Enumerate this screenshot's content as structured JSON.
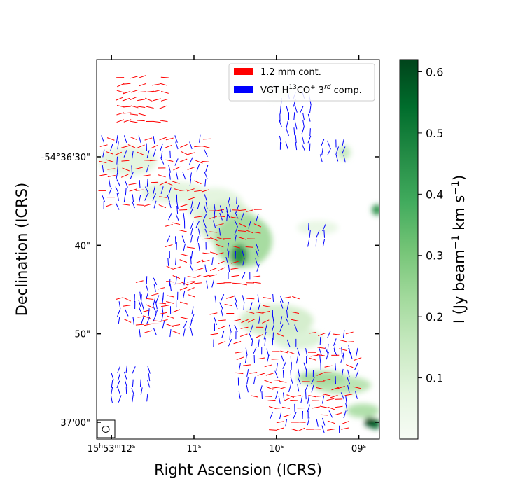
{
  "chart_data": {
    "type": "map",
    "xlabel": "Right Ascension (ICRS)",
    "ylabel": "Declination (ICRS)",
    "x_ticks": [
      {
        "sec": 12,
        "label_h": "15",
        "label_m": "53",
        "label_s": "12",
        "sup_h": "h",
        "sup_m": "m",
        "sup_s": "s"
      },
      {
        "sec": 11,
        "label_s": "11",
        "sup_s": "s"
      },
      {
        "sec": 10,
        "label_s": "10",
        "sup_s": "s"
      },
      {
        "sec": 9,
        "label_s": "09",
        "sup_s": "s"
      }
    ],
    "y_ticks": [
      {
        "arcsec": 30,
        "label": "-54°36'30\""
      },
      {
        "arcsec": 40,
        "label": "40\""
      },
      {
        "arcsec": 50,
        "label": "50\""
      },
      {
        "arcsec": 60,
        "label": "37'00\""
      }
    ],
    "ra_range_sec": [
      12.18,
      8.75
    ],
    "dec_range_arcsec": [
      19.0,
      61.9
    ],
    "colorbar": {
      "cmap": "Greens",
      "label_pre": "I (Jy beam",
      "label_sup1": "−1",
      "label_mid": " km s",
      "label_sup2": "−1",
      "label_post": ")",
      "vmin": 0.0,
      "vmax": 0.62,
      "ticks": [
        0.1,
        0.2,
        0.3,
        0.4,
        0.5,
        0.6
      ],
      "tick_labels": [
        "0.1",
        "0.2",
        "0.3",
        "0.4",
        "0.5",
        "0.6"
      ]
    },
    "legend": {
      "position": "top-right",
      "entries": [
        {
          "label": "1.2 mm cont.",
          "color": "#ff0000"
        },
        {
          "label_pre": "VGT H",
          "label_sup": "13",
          "label_mid": "CO",
          "label_sup2": "+",
          "label_post": " 3",
          "label_sup3": "rd",
          "label_end": " comp.",
          "color": "#0000ff"
        }
      ]
    },
    "intensity_blobs": [
      {
        "ra": 10.45,
        "dec": 41.1,
        "rx": 0.1,
        "ry": 1.2,
        "value": 0.45
      },
      {
        "ra": 10.4,
        "dec": 39.5,
        "rx": 0.35,
        "ry": 3.0,
        "value": 0.22
      },
      {
        "ra": 10.6,
        "dec": 37.5,
        "rx": 0.35,
        "ry": 2.5,
        "value": 0.12
      },
      {
        "ra": 10.75,
        "dec": 35.5,
        "rx": 0.35,
        "ry": 2.0,
        "value": 0.08
      },
      {
        "ra": 11.25,
        "dec": 34.0,
        "rx": 0.4,
        "ry": 1.2,
        "value": 0.08
      },
      {
        "ra": 11.8,
        "dec": 30.5,
        "rx": 0.35,
        "ry": 1.6,
        "value": 0.08
      },
      {
        "ra": 10.0,
        "dec": 48.5,
        "rx": 0.45,
        "ry": 1.8,
        "value": 0.12
      },
      {
        "ra": 9.75,
        "dec": 50.5,
        "rx": 0.3,
        "ry": 1.2,
        "value": 0.1
      },
      {
        "ra": 9.45,
        "dec": 55.0,
        "rx": 0.3,
        "ry": 0.8,
        "value": 0.22
      },
      {
        "ra": 9.2,
        "dec": 55.8,
        "rx": 0.35,
        "ry": 1.0,
        "value": 0.18
      },
      {
        "ra": 8.95,
        "dec": 58.7,
        "rx": 0.2,
        "ry": 0.8,
        "value": 0.2
      },
      {
        "ra": 8.87,
        "dec": 60.0,
        "rx": 0.06,
        "ry": 0.55,
        "value": 0.62
      },
      {
        "ra": 8.8,
        "dec": 60.2,
        "rx": 0.06,
        "ry": 0.6,
        "value": 0.55
      },
      {
        "ra": 8.78,
        "dec": 36.0,
        "rx": 0.06,
        "ry": 0.6,
        "value": 0.45
      },
      {
        "ra": 9.18,
        "dec": 29.5,
        "rx": 0.08,
        "ry": 0.8,
        "value": 0.15
      },
      {
        "ra": 9.5,
        "dec": 38.0,
        "rx": 0.25,
        "ry": 0.8,
        "value": 0.06
      },
      {
        "ra": 10.0,
        "dec": 22.5,
        "rx": 0.2,
        "ry": 1.0,
        "value": 0.05
      }
    ],
    "vector_regions": [
      {
        "name": "main-ridge",
        "red_frac": 0.5,
        "rect": {
          "ra": [
            12.1,
            10.85
          ],
          "dec": [
            28.0,
            36.0
          ]
        }
      },
      {
        "name": "center",
        "red_frac": 0.45,
        "rect": {
          "ra": [
            11.3,
            10.2
          ],
          "dec": [
            36.0,
            45.0
          ]
        }
      },
      {
        "name": "mid-left",
        "red_frac": 0.5,
        "rect": {
          "ra": [
            11.65,
            11.0
          ],
          "dec": [
            44.0,
            50.0
          ]
        }
      },
      {
        "name": "mid-right",
        "red_frac": 0.35,
        "rect": {
          "ra": [
            10.75,
            9.7
          ],
          "dec": [
            46.0,
            51.5
          ]
        }
      },
      {
        "name": "lower",
        "red_frac": 0.35,
        "rect": {
          "ra": [
            10.45,
            9.0
          ],
          "dec": [
            52.0,
            57.0
          ]
        }
      },
      {
        "name": "bottom",
        "red_frac": 0.6,
        "rect": {
          "ra": [
            10.05,
            9.1
          ],
          "dec": [
            57.5,
            61.0
          ]
        }
      },
      {
        "name": "top-strip",
        "red_frac": 1.0,
        "rect": {
          "ra": [
            11.9,
            11.35
          ],
          "dec": [
            21.0,
            26.0
          ]
        }
      },
      {
        "name": "top-right",
        "red_frac": 0.0,
        "rect": {
          "ra": [
            9.95,
            9.55
          ],
          "dec": [
            23.0,
            29.0
          ]
        }
      },
      {
        "name": "right-pair",
        "red_frac": 0.0,
        "rect": {
          "ra": [
            9.45,
            9.15
          ],
          "dec": [
            28.5,
            30.5
          ]
        }
      },
      {
        "name": "left-lower",
        "red_frac": 0.0,
        "rect": {
          "ra": [
            12.0,
            11.5
          ],
          "dec": [
            54.0,
            57.5
          ]
        }
      },
      {
        "name": "right-mid",
        "red_frac": 0.0,
        "rect": {
          "ra": [
            9.6,
            9.35
          ],
          "dec": [
            38.0,
            40.0
          ]
        }
      },
      {
        "name": "right-lower",
        "red_frac": 0.4,
        "rect": {
          "ra": [
            9.55,
            9.1
          ],
          "dec": [
            50.0,
            52.5
          ]
        }
      },
      {
        "name": "left-mid",
        "red_frac": 0.4,
        "rect": {
          "ra": [
            11.9,
            11.35
          ],
          "dec": [
            46.0,
            48.5
          ]
        }
      },
      {
        "name": "upper-mid-blue",
        "red_frac": 0.0,
        "rect": {
          "ra": [
            10.75,
            10.4
          ],
          "dec": [
            35.0,
            37.0
          ]
        }
      }
    ],
    "beam": {
      "shape": "ellipse"
    }
  }
}
